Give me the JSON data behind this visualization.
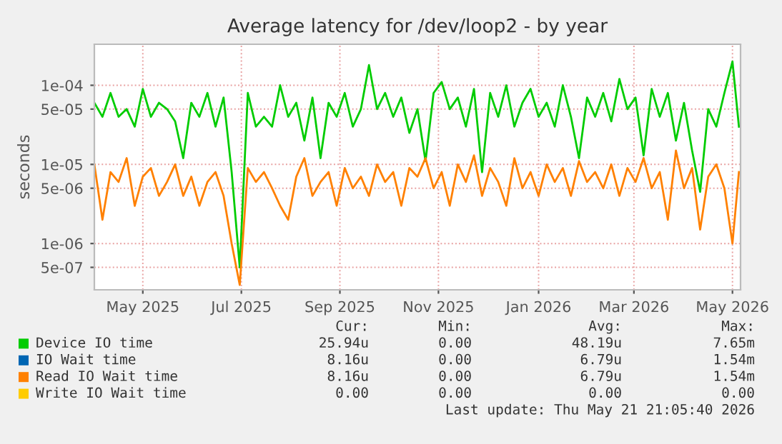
{
  "chart_data": {
    "type": "line",
    "title": "Average latency for /dev/loop2 - by year",
    "ylabel": "seconds",
    "log": "y",
    "grid": true,
    "legend": "bottom",
    "marker": "none",
    "line_style": "solid",
    "x": [
      "2025-04-16",
      "2025-04-21",
      "2025-04-26",
      "2025-05-01",
      "2025-05-06",
      "2025-05-11",
      "2025-05-16",
      "2025-05-21",
      "2025-05-26",
      "2025-05-31",
      "2025-06-05",
      "2025-06-10",
      "2025-06-15",
      "2025-06-20",
      "2025-06-25",
      "2025-06-30",
      "2025-07-05",
      "2025-07-10",
      "2025-07-15",
      "2025-07-20",
      "2025-07-25",
      "2025-07-30",
      "2025-08-04",
      "2025-08-09",
      "2025-08-14",
      "2025-08-19",
      "2025-08-24",
      "2025-08-29",
      "2025-09-03",
      "2025-09-08",
      "2025-09-13",
      "2025-09-18",
      "2025-09-23",
      "2025-09-28",
      "2025-10-03",
      "2025-10-08",
      "2025-10-13",
      "2025-10-18",
      "2025-10-23",
      "2025-10-28",
      "2025-11-02",
      "2025-11-07",
      "2025-11-12",
      "2025-11-17",
      "2025-11-22",
      "2025-11-27",
      "2025-12-02",
      "2025-12-07",
      "2025-12-12",
      "2025-12-17",
      "2025-12-22",
      "2025-12-27",
      "2026-01-01",
      "2026-01-06",
      "2026-01-11",
      "2026-01-16",
      "2026-01-21",
      "2026-01-26",
      "2026-01-31",
      "2026-02-05",
      "2026-02-10",
      "2026-02-15",
      "2026-02-20",
      "2026-02-25",
      "2026-03-02",
      "2026-03-07",
      "2026-03-12",
      "2026-03-17",
      "2026-03-22",
      "2026-03-27",
      "2026-04-01",
      "2026-04-06",
      "2026-04-11",
      "2026-04-16",
      "2026-04-21",
      "2026-04-26",
      "2026-05-01",
      "2026-05-06",
      "2026-05-11",
      "2026-05-16",
      "2026-05-20"
    ],
    "xlim": [
      "2025-04-16",
      "2026-05-21"
    ],
    "xticks": [
      {
        "value": "2025-05-16",
        "label": "May 2025"
      },
      {
        "value": "2025-07-16",
        "label": "Jul 2025"
      },
      {
        "value": "2025-09-15",
        "label": "Sep 2025"
      },
      {
        "value": "2025-11-15",
        "label": "Nov 2025"
      },
      {
        "value": "2026-01-16",
        "label": "Jan 2026"
      },
      {
        "value": "2026-03-16",
        "label": "Mar 2026"
      },
      {
        "value": "2026-05-16",
        "label": "May 2026"
      }
    ],
    "ylim": [
      2.6e-07,
      0.00033
    ],
    "yticks": [
      {
        "value": 5e-07,
        "label": "5e-07"
      },
      {
        "value": 1e-06,
        "label": "1e-06"
      },
      {
        "value": 5e-06,
        "label": "5e-06"
      },
      {
        "value": 1e-05,
        "label": "1e-05"
      },
      {
        "value": 5e-05,
        "label": "5e-05"
      },
      {
        "value": 0.0001,
        "label": "1e-04"
      }
    ],
    "series": [
      {
        "name": "Device IO time",
        "color": "#00cc00",
        "values": [
          6e-05,
          4e-05,
          8e-05,
          4e-05,
          5e-05,
          3e-05,
          9e-05,
          4e-05,
          6e-05,
          5e-05,
          3.5e-05,
          1.2e-05,
          6e-05,
          4e-05,
          8e-05,
          3e-05,
          7e-05,
          8e-06,
          5e-07,
          8e-05,
          3e-05,
          4e-05,
          3e-05,
          0.0001,
          4e-05,
          6e-05,
          2e-05,
          7e-05,
          1.2e-05,
          6e-05,
          4e-05,
          8e-05,
          3e-05,
          5e-05,
          0.00018,
          5e-05,
          8e-05,
          4e-05,
          7e-05,
          2.5e-05,
          5e-05,
          1.1e-05,
          8e-05,
          0.00011,
          5e-05,
          7e-05,
          3e-05,
          9e-05,
          8e-06,
          8e-05,
          4e-05,
          0.0001,
          3e-05,
          6e-05,
          9e-05,
          4e-05,
          6e-05,
          3e-05,
          0.0001,
          4e-05,
          1.2e-05,
          7e-05,
          4e-05,
          8e-05,
          3.5e-05,
          0.00012,
          5e-05,
          7e-05,
          1.3e-05,
          9e-05,
          4e-05,
          8e-05,
          2e-05,
          6e-05,
          1.5e-05,
          4.5e-06,
          5e-05,
          3e-05,
          8e-05,
          0.0002,
          3e-05
        ]
      },
      {
        "name": "IO Wait time",
        "color": "#0066b3",
        "values": [
          null,
          null,
          null,
          null,
          null,
          null,
          null,
          null,
          null,
          null,
          null,
          null,
          null,
          null,
          null,
          null,
          null,
          null,
          null,
          null,
          null,
          null,
          null,
          null,
          null,
          null,
          null,
          null,
          null,
          null,
          null,
          null,
          null,
          null,
          null,
          null,
          null,
          null,
          null,
          null,
          null,
          null,
          null,
          null,
          null,
          null,
          null,
          null,
          null,
          null,
          null,
          null,
          null,
          null,
          null,
          null,
          null,
          null,
          null,
          null,
          null,
          null,
          null,
          null,
          null,
          null,
          null,
          null,
          null,
          null,
          null,
          null,
          null,
          null,
          null,
          null,
          null,
          null,
          null,
          null,
          null
        ]
      },
      {
        "name": "Read IO Wait time",
        "color": "#ff8000",
        "values": [
          1e-05,
          2e-06,
          8e-06,
          6e-06,
          1.2e-05,
          3e-06,
          7e-06,
          9e-06,
          4e-06,
          6e-06,
          1e-05,
          4e-06,
          7e-06,
          3e-06,
          6e-06,
          8e-06,
          4e-06,
          1e-06,
          3e-07,
          9e-06,
          6e-06,
          8e-06,
          5e-06,
          3e-06,
          2e-06,
          7e-06,
          1.2e-05,
          4e-06,
          6e-06,
          8e-06,
          3e-06,
          9e-06,
          5e-06,
          7e-06,
          4e-06,
          1e-05,
          6e-06,
          8e-06,
          3e-06,
          9e-06,
          7e-06,
          1.2e-05,
          5e-06,
          8e-06,
          3e-06,
          1e-05,
          6e-06,
          1.3e-05,
          4e-06,
          9e-06,
          6e-06,
          3e-06,
          1.2e-05,
          5e-06,
          8e-06,
          4e-06,
          1e-05,
          6e-06,
          9e-06,
          4e-06,
          1.1e-05,
          6e-06,
          8e-06,
          5e-06,
          1e-05,
          4e-06,
          9e-06,
          6e-06,
          1.2e-05,
          5e-06,
          8e-06,
          2e-06,
          1.5e-05,
          5e-06,
          9e-06,
          1.5e-06,
          7e-06,
          1e-05,
          5e-06,
          1e-06,
          8e-06
        ]
      },
      {
        "name": "Write IO Wait time",
        "color": "#ffcc00",
        "values": [
          null,
          null,
          null,
          null,
          null,
          null,
          null,
          null,
          null,
          null,
          null,
          null,
          null,
          null,
          null,
          null,
          null,
          null,
          null,
          null,
          null,
          null,
          null,
          null,
          null,
          null,
          null,
          null,
          null,
          null,
          null,
          null,
          null,
          null,
          null,
          null,
          null,
          null,
          null,
          null,
          null,
          null,
          null,
          null,
          null,
          null,
          null,
          null,
          null,
          null,
          null,
          null,
          null,
          null,
          null,
          null,
          null,
          null,
          null,
          null,
          null,
          null,
          null,
          null,
          null,
          null,
          null,
          null,
          null,
          null,
          null,
          null,
          null,
          null,
          null,
          null,
          null,
          null,
          null,
          null,
          null
        ]
      }
    ],
    "annotations": [
      "Cur:",
      "Min:",
      "Avg:",
      "Max:",
      "25.94u",
      "0.00",
      "48.19u",
      "7.65m",
      "8.16u",
      "0.00",
      "6.79u",
      "1.54m",
      "8.16u",
      "0.00",
      "6.79u",
      "1.54m",
      "0.00",
      "0.00",
      "0.00",
      "0.00",
      "Last update: Thu May 21 21:05:40 2026"
    ]
  }
}
